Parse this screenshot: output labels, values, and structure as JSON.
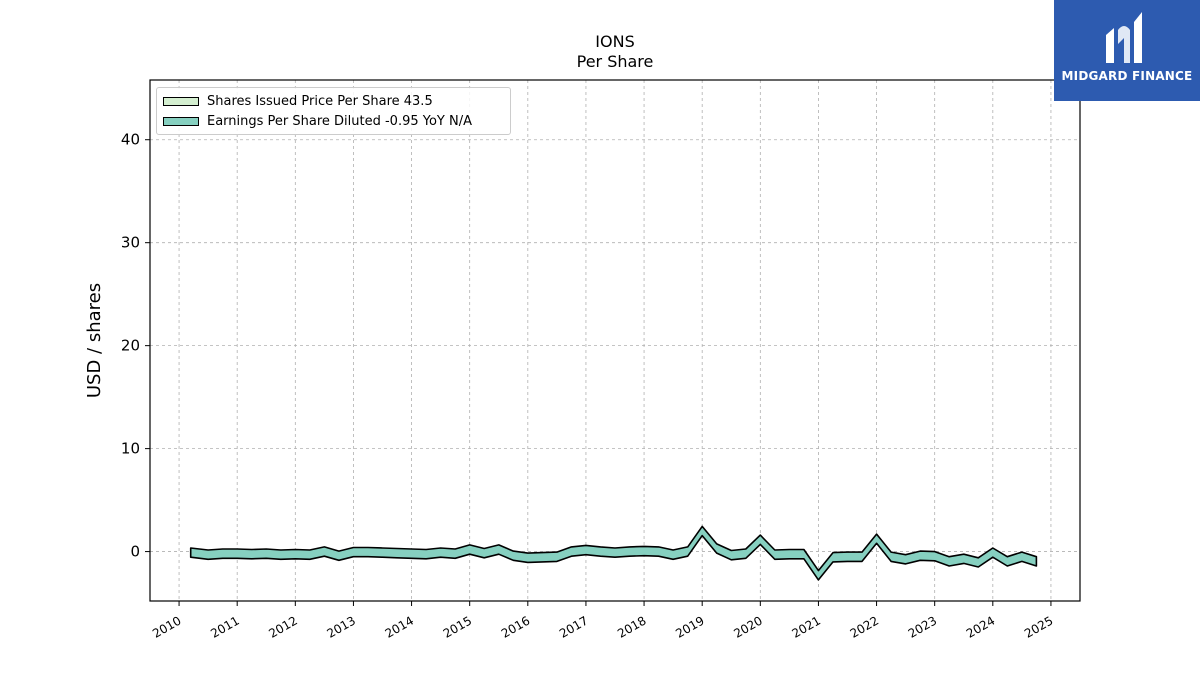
{
  "brand": {
    "logo_text": "MIDGARD FINANCE",
    "color": "#2d5bb0"
  },
  "chart_data": {
    "type": "area",
    "title": "IONS",
    "subtitle": "Per  Share",
    "xlabel": "",
    "ylabel": "USD / shares",
    "ylim": [
      -4.8,
      45.8
    ],
    "xlim": [
      2009.5,
      2025.5
    ],
    "yticks": [
      0,
      10,
      20,
      30,
      40
    ],
    "xticks": [
      "2010",
      "2011",
      "2012",
      "2013",
      "2014",
      "2015",
      "2016",
      "2017",
      "2018",
      "2019",
      "2020",
      "2021",
      "2022",
      "2023",
      "2024",
      "2025"
    ],
    "grid": true,
    "legend_position": "top-left",
    "series": [
      {
        "name": "Shares Issued Price Per Share  43.5",
        "color": "#d4efd0",
        "values": []
      },
      {
        "name": "Earnings Per Share Diluted  -0.95 YoY N/A",
        "color": "#86d0c0",
        "x": [
          2010.2,
          2010.5,
          2010.75,
          2011.0,
          2011.25,
          2011.5,
          2011.75,
          2012.0,
          2012.25,
          2012.5,
          2012.75,
          2013.0,
          2013.25,
          2013.5,
          2013.75,
          2014.0,
          2014.25,
          2014.5,
          2014.75,
          2015.0,
          2015.25,
          2015.5,
          2015.75,
          2016.0,
          2016.25,
          2016.5,
          2016.75,
          2017.0,
          2017.25,
          2017.5,
          2017.75,
          2018.0,
          2018.25,
          2018.5,
          2018.75,
          2019.0,
          2019.25,
          2019.5,
          2019.75,
          2020.0,
          2020.25,
          2020.5,
          2020.75,
          2021.0,
          2021.25,
          2021.5,
          2021.75,
          2022.0,
          2022.25,
          2022.5,
          2022.75,
          2023.0,
          2023.25,
          2023.5,
          2023.75,
          2024.0,
          2024.25,
          2024.5,
          2024.75
        ],
        "values": [
          -0.1,
          -0.3,
          -0.2,
          -0.2,
          -0.25,
          -0.2,
          -0.3,
          -0.25,
          -0.3,
          0.0,
          -0.4,
          -0.05,
          -0.05,
          -0.1,
          -0.15,
          -0.2,
          -0.25,
          -0.1,
          -0.2,
          0.2,
          -0.15,
          0.2,
          -0.4,
          -0.6,
          -0.55,
          -0.5,
          0.0,
          0.15,
          0.0,
          -0.1,
          0.0,
          0.05,
          0.0,
          -0.3,
          0.0,
          2.0,
          0.3,
          -0.35,
          -0.2,
          1.15,
          -0.3,
          -0.25,
          -0.25,
          -2.3,
          -0.55,
          -0.5,
          -0.5,
          1.25,
          -0.5,
          -0.75,
          -0.4,
          -0.45,
          -0.95,
          -0.7,
          -1.05,
          -0.1,
          -0.95,
          -0.5,
          -0.95
        ]
      }
    ]
  }
}
